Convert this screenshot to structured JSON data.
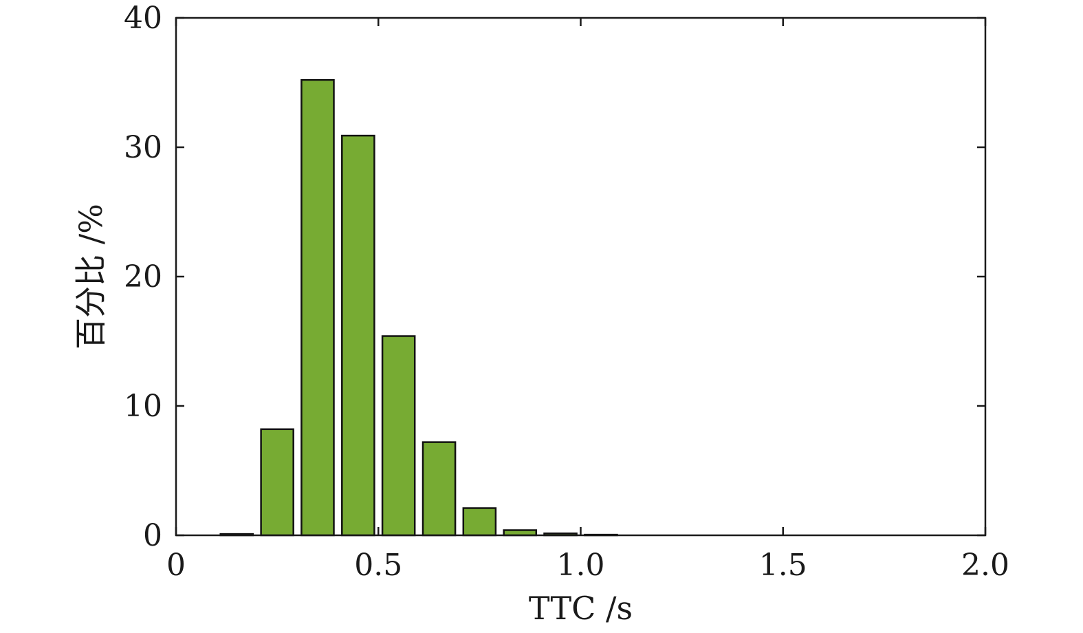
{
  "chart_data": {
    "type": "bar",
    "title": "",
    "xlabel": "TTC /s",
    "ylabel": "百分比 /%",
    "xlim": [
      0,
      2.0
    ],
    "ylim": [
      0,
      40
    ],
    "xticks": [
      0,
      0.5,
      1.0,
      1.5,
      2.0
    ],
    "xtick_labels": [
      "0",
      "0.5",
      "1.0",
      "1.5",
      "2.0"
    ],
    "yticks": [
      0,
      10,
      20,
      30,
      40
    ],
    "ytick_labels": [
      "0",
      "10",
      "20",
      "30",
      "40"
    ],
    "bar_width": 0.08,
    "x": [
      0.15,
      0.25,
      0.35,
      0.45,
      0.55,
      0.65,
      0.75,
      0.85,
      0.95,
      1.05
    ],
    "values": [
      0.1,
      8.2,
      35.2,
      30.9,
      15.4,
      7.2,
      2.1,
      0.4,
      0.15,
      0.05
    ],
    "grid": false,
    "legend": false,
    "bar_color": "#77ab33"
  }
}
